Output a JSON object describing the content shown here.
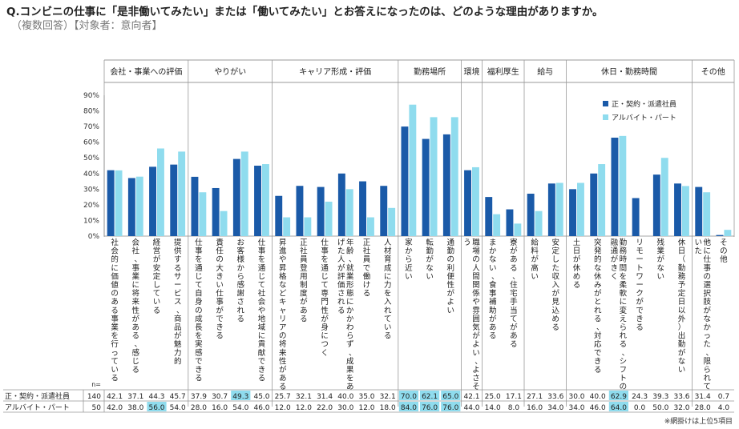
{
  "title": "Q.コンビニの仕事に「是非働いてみたい」または「働いてみたい」とお答えになったのは、どのような理由がありますか。",
  "subtitle": "（複数回答）【対象者：意向者】",
  "note": "※網掛けは上位5項目",
  "n_label": "n=",
  "chart_data": {
    "type": "bar",
    "ylim": [
      0,
      90
    ],
    "yticks": [
      "0%",
      "10%",
      "20%",
      "30%",
      "40%",
      "50%",
      "60%",
      "70%",
      "80%",
      "90%"
    ],
    "groups": [
      {
        "label": "会社・事業への評価",
        "count": 4
      },
      {
        "label": "やりがい",
        "count": 4
      },
      {
        "label": "キャリア形成・評価",
        "count": 6
      },
      {
        "label": "勤務場所",
        "count": 3
      },
      {
        "label": "環境",
        "count": 1
      },
      {
        "label": "福利厚生",
        "count": 2
      },
      {
        "label": "給与",
        "count": 2
      },
      {
        "label": "休日・勤務時間",
        "count": 6
      },
      {
        "label": "その他",
        "count": 2
      }
    ],
    "categories": [
      "社会的に価値のある事業を行っている",
      "会社、事業に将来性がある、感じる",
      "経営が安定している",
      "提供するサービス、商品が魅力的",
      "仕事を通じて自身の成長を実感できる",
      "責任の大きい仕事ができる",
      "お客様から感謝される",
      "仕事を通じて社会や地域に貢献できる",
      "昇進や昇格などキャリアの将来性がある",
      "正社員登用制度がある",
      "仕事を通じて専門性が身につく",
      "年齢、就業形態にかかわらず、成果をあげた人が評価される",
      "正社員で働ける",
      "人材育成に力を入れている",
      "家から近い",
      "転勤がない",
      "通勤の利便性がよい",
      "職場の人間関係や雰囲気がよい、よさそう",
      "まかない、食事補助がある",
      "寮がある、住宅手当てがある",
      "給料が高い",
      "安定した収入が見込める",
      "土日が休める",
      "突発的な休みがとれる、対応できる",
      "勤務時間を柔軟に変えられる、シフトの融通がきく",
      "リモートワークができる",
      "残業がない",
      "休日（勤務予定日以外）出勤がない",
      "他に仕事の選択肢がなかった、限られていた",
      "その他"
    ],
    "series": [
      {
        "name": "正・契約・派遣社員",
        "n": "140",
        "color": "#1a5aa8",
        "values": [
          42.1,
          37.1,
          44.3,
          45.7,
          37.9,
          30.7,
          49.3,
          45.0,
          25.7,
          32.1,
          31.4,
          40.0,
          35.0,
          32.1,
          70.0,
          62.1,
          65.0,
          42.1,
          25.0,
          17.1,
          27.1,
          33.6,
          30.0,
          40.0,
          62.9,
          24.3,
          39.3,
          33.6,
          31.4,
          0.7
        ],
        "labels": [
          "42.1",
          "37.1",
          "44.3",
          "45.7",
          "37.9",
          "30.7",
          "49.3",
          "45.0",
          "25.7",
          "32.1",
          "31.4",
          "40.0",
          "35.0",
          "32.1",
          "70.0",
          "62.1",
          "65.0",
          "42.1",
          "25.0",
          "17.1",
          "27.1",
          "33.6",
          "30.0",
          "40.0",
          "62.9",
          "24.3",
          "39.3",
          "33.6",
          "31.4",
          "0.7"
        ],
        "top5": [
          6,
          14,
          15,
          16,
          24
        ]
      },
      {
        "name": "アルバイト・パート",
        "n": "50",
        "color": "#8fdcee",
        "values": [
          42.0,
          38.0,
          56.0,
          54.0,
          28.0,
          16.0,
          54.0,
          46.0,
          12.0,
          12.0,
          22.0,
          30.0,
          12.0,
          18.0,
          84.0,
          76.0,
          76.0,
          44.0,
          14.0,
          8.0,
          16.0,
          34.0,
          34.0,
          46.0,
          64.0,
          0.0,
          50.0,
          32.0,
          28.0,
          4.0
        ],
        "labels": [
          "42.0",
          "38.0",
          "56.0",
          "54.0",
          "28.0",
          "16.0",
          "54.0",
          "46.0",
          "12.0",
          "12.0",
          "22.0",
          "30.0",
          "12.0",
          "18.0",
          "84.0",
          "76.0",
          "76.0",
          "44.0",
          "14.0",
          "8.0",
          "16.0",
          "34.0",
          "34.0",
          "46.0",
          "64.0",
          "0.0",
          "50.0",
          "32.0",
          "28.0",
          "4.0"
        ],
        "top5": [
          2,
          14,
          15,
          16,
          24
        ]
      }
    ]
  }
}
